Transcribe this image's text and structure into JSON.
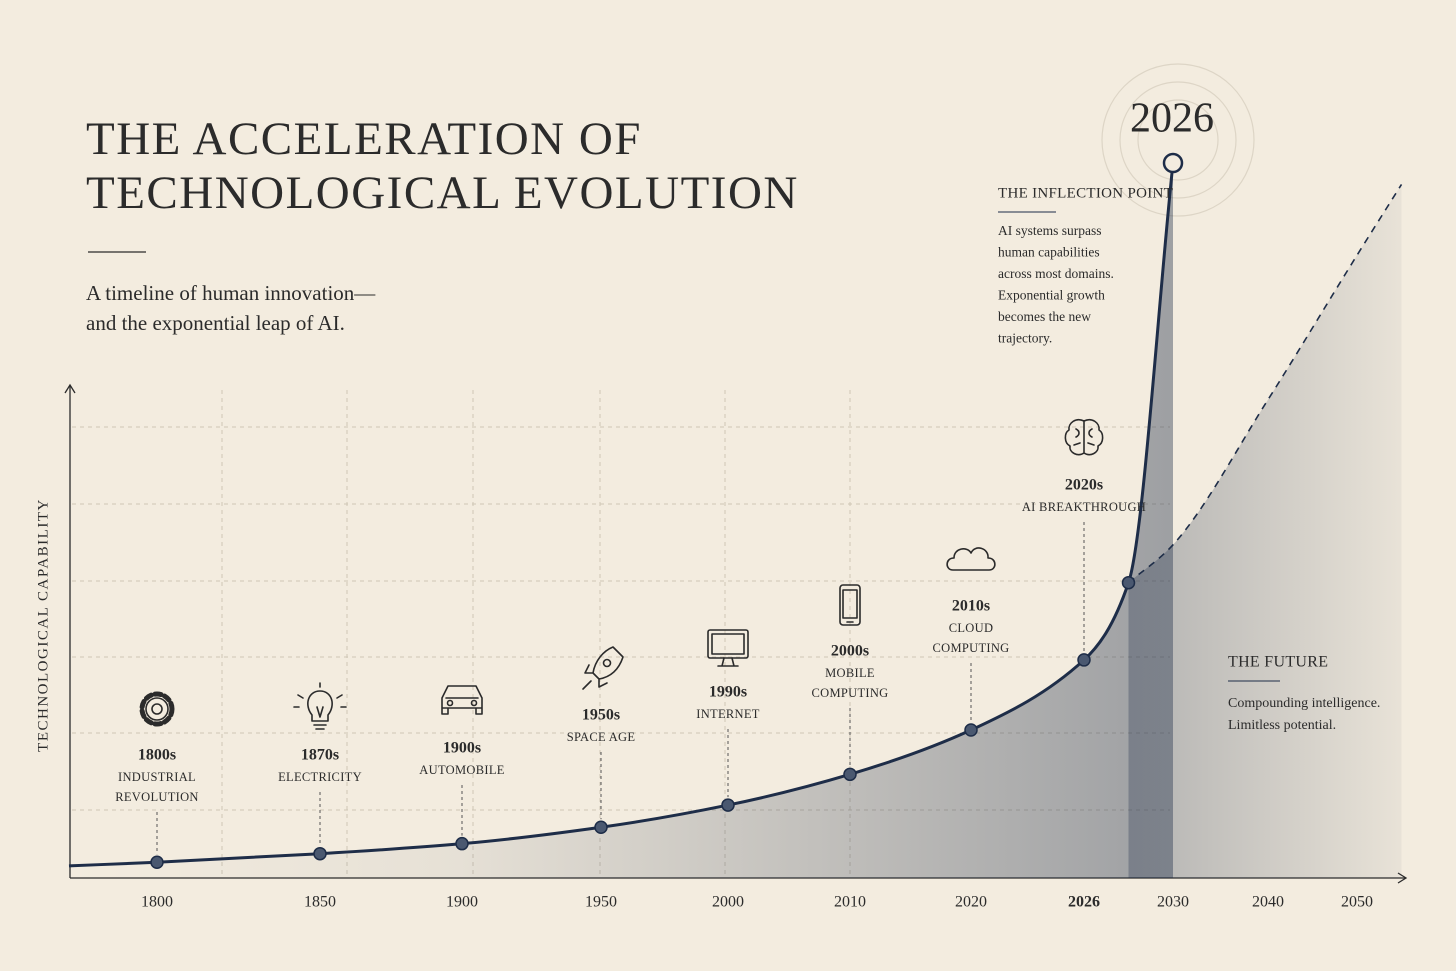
{
  "chart_data": {
    "type": "line",
    "title": [
      "THE ACCELERATION OF",
      "TECHNOLOGICAL EVOLUTION"
    ],
    "subtitle": [
      "A timeline of human innovation—",
      "and the exponential leap of AI."
    ],
    "y_label": "TECHNOLOGICAL CAPABILITY",
    "xlim": [
      1773,
      2055
    ],
    "ylim": [
      0,
      100
    ],
    "xticks": [
      1800,
      1850,
      1900,
      1950,
      2000,
      2010,
      2020,
      2026,
      2030,
      2040,
      2050
    ],
    "emphasis_tick": 2026,
    "series": [
      {
        "color": "#1e2d48",
        "x": [
          1773,
          1800,
          1850,
          1900,
          1950,
          2000,
          2010,
          2020,
          2026,
          2028,
          2030
        ],
        "values": [
          1.7,
          2.2,
          3.4,
          4.8,
          7.1,
          10.2,
          14.5,
          20.7,
          30.5,
          41.3,
          100
        ]
      },
      {
        "color": "#1e2d48",
        "dashed": true,
        "x": [
          2028,
          2030,
          2040,
          2050,
          2055
        ],
        "values": [
          41.3,
          46.6,
          66.9,
          87.1,
          97
        ]
      }
    ],
    "milestones": [
      {
        "label": "1800s",
        "text": [
          "INDUSTRIAL",
          "REVOLUTION"
        ]
      },
      {
        "label": "1870s",
        "text": [
          "ELECTRICITY"
        ]
      },
      {
        "label": "1900s",
        "text": [
          "AUTOMOBILE"
        ]
      },
      {
        "label": "1950s",
        "text": [
          "SPACE AGE"
        ]
      },
      {
        "label": "1990s",
        "text": [
          "INTERNET"
        ]
      },
      {
        "label": "2000s",
        "text": [
          "MOBILE",
          "COMPUTING"
        ]
      },
      {
        "label": "2010s",
        "text": [
          "CLOUD",
          "COMPUTING"
        ]
      },
      {
        "label": "2020s",
        "text": [
          "AI BREAKTHROUGH"
        ]
      }
    ],
    "inflection": {
      "label": "2026",
      "title": "THE INFLECTION POINT",
      "text": [
        "AI systems surpass",
        "human capabilities",
        "across most domains.",
        "Exponential growth",
        "becomes the new",
        "trajectory."
      ]
    },
    "future": {
      "title": "THE FUTURE",
      "text": [
        "Compounding intelligence.",
        "Limitless potential."
      ]
    }
  }
}
